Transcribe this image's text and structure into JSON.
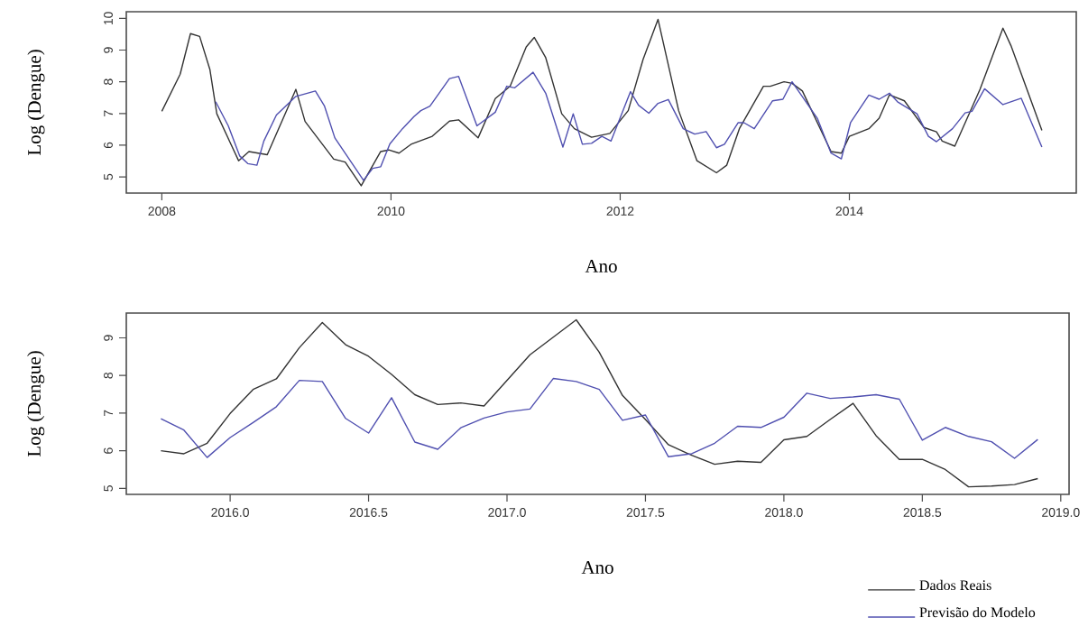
{
  "chart_data": [
    {
      "type": "line",
      "xlabel": "Ano",
      "ylabel": "Log (Dengue)",
      "xlim": [
        2007.69,
        2015.98
      ],
      "ylim": [
        4.49,
        10.21
      ],
      "xticks": [
        2008,
        2010,
        2012,
        2014
      ],
      "yticks": [
        5,
        6,
        7,
        8,
        9,
        10
      ],
      "series": [
        {
          "color": "#333333",
          "x": [
            2008.0,
            2008.16,
            2008.25,
            2008.33,
            2008.42,
            2008.48,
            2008.67,
            2008.76,
            2008.92,
            2009.17,
            2009.25,
            2009.5,
            2009.6,
            2009.74,
            2009.91,
            2009.98,
            2010.07,
            2010.18,
            2010.36,
            2010.51,
            2010.59,
            2010.76,
            2010.91,
            2011.04,
            2011.18,
            2011.25,
            2011.35,
            2011.49,
            2011.6,
            2011.75,
            2011.91,
            2012.07,
            2012.2,
            2012.33,
            2012.51,
            2012.67,
            2012.84,
            2012.93,
            2013.04,
            2013.25,
            2013.31,
            2013.43,
            2013.5,
            2013.59,
            2013.84,
            2013.93,
            2014.0,
            2014.17,
            2014.26,
            2014.35,
            2014.48,
            2014.65,
            2014.76,
            2014.81,
            2014.92,
            2015.14,
            2015.34,
            2015.41,
            2015.68
          ],
          "values": [
            7.07,
            8.24,
            9.52,
            9.43,
            8.38,
            6.99,
            5.51,
            5.8,
            5.7,
            7.76,
            6.75,
            5.56,
            5.47,
            4.72,
            5.8,
            5.85,
            5.75,
            6.04,
            6.28,
            6.76,
            6.8,
            6.23,
            7.47,
            7.86,
            9.1,
            9.4,
            8.76,
            6.99,
            6.52,
            6.25,
            6.37,
            7.09,
            8.71,
            9.97,
            7.09,
            5.51,
            5.13,
            5.37,
            6.52,
            7.86,
            7.86,
            8.0,
            7.95,
            7.71,
            5.8,
            5.75,
            6.28,
            6.52,
            6.85,
            7.59,
            7.4,
            6.56,
            6.42,
            6.13,
            5.97,
            7.76,
            9.69,
            9.14,
            6.47
          ]
        },
        {
          "color": "#5050b0",
          "x": [
            2008.47,
            2008.58,
            2008.68,
            2008.75,
            2008.83,
            2008.89,
            2009.0,
            2009.17,
            2009.34,
            2009.42,
            2009.51,
            2009.76,
            2009.84,
            2009.91,
            2009.99,
            2010.1,
            2010.2,
            2010.26,
            2010.34,
            2010.51,
            2010.59,
            2010.75,
            2010.91,
            2011.01,
            2011.08,
            2011.24,
            2011.35,
            2011.5,
            2011.59,
            2011.67,
            2011.75,
            2011.84,
            2011.92,
            2012.09,
            2012.16,
            2012.25,
            2012.33,
            2012.42,
            2012.55,
            2012.65,
            2012.75,
            2012.84,
            2012.91,
            2013.03,
            2013.08,
            2013.17,
            2013.33,
            2013.42,
            2013.5,
            2013.72,
            2013.84,
            2013.93,
            2014.01,
            2014.17,
            2014.26,
            2014.35,
            2014.42,
            2014.59,
            2014.69,
            2014.76,
            2014.9,
            2015.01,
            2015.07,
            2015.18,
            2015.34,
            2015.5,
            2015.68
          ],
          "values": [
            7.37,
            6.61,
            5.66,
            5.42,
            5.37,
            6.13,
            6.95,
            7.54,
            7.71,
            7.23,
            6.23,
            4.89,
            5.27,
            5.32,
            6.04,
            6.52,
            6.9,
            7.09,
            7.23,
            8.1,
            8.17,
            6.61,
            7.04,
            7.86,
            7.81,
            8.3,
            7.64,
            5.94,
            6.99,
            6.03,
            6.06,
            6.28,
            6.13,
            7.69,
            7.26,
            7.01,
            7.32,
            7.44,
            6.52,
            6.35,
            6.43,
            5.92,
            6.03,
            6.71,
            6.71,
            6.52,
            7.4,
            7.45,
            8.0,
            6.85,
            5.75,
            5.57,
            6.71,
            7.58,
            7.45,
            7.64,
            7.37,
            6.99,
            6.28,
            6.11,
            6.52,
            7.02,
            7.07,
            7.78,
            7.28,
            7.48,
            5.94
          ]
        }
      ]
    },
    {
      "type": "line",
      "xlabel": "Ano",
      "ylabel": "Log (Dengue)",
      "xlim": [
        2015.625,
        2019.03
      ],
      "ylim": [
        4.84,
        9.66
      ],
      "xticks": [
        {
          "value": 2016,
          "label": "2016.0"
        },
        {
          "value": 2016.5,
          "label": "2016.5"
        },
        {
          "value": 2017,
          "label": "2017.0"
        },
        {
          "value": 2017.5,
          "label": "2017.5"
        },
        {
          "value": 2018,
          "label": "2018.0"
        },
        {
          "value": 2018.5,
          "label": "2018.5"
        },
        {
          "value": 2019,
          "label": "2019.0"
        }
      ],
      "yticks": [
        5,
        6,
        7,
        8,
        9
      ],
      "legend": "bottom right",
      "series": [
        {
          "name": "Dados Reais",
          "color": "#333333",
          "x": [
            2015.75,
            2015.833,
            2015.917,
            2016.0,
            2016.083,
            2016.167,
            2016.25,
            2016.333,
            2016.417,
            2016.5,
            2016.583,
            2016.667,
            2016.75,
            2016.833,
            2016.917,
            2017.0,
            2017.083,
            2017.167,
            2017.25,
            2017.333,
            2017.417,
            2017.5,
            2017.583,
            2017.667,
            2017.75,
            2017.833,
            2017.917,
            2018.0,
            2018.083,
            2018.167,
            2018.25,
            2018.333,
            2018.417,
            2018.5,
            2018.583,
            2018.667,
            2018.75,
            2018.833,
            2018.917
          ],
          "values": [
            6.0,
            5.92,
            6.2,
            6.99,
            7.63,
            7.91,
            8.74,
            9.41,
            8.82,
            8.51,
            8.03,
            7.49,
            7.23,
            7.27,
            7.19,
            7.87,
            8.55,
            9.02,
            9.48,
            8.62,
            7.47,
            6.83,
            6.16,
            5.88,
            5.64,
            5.72,
            5.69,
            6.29,
            6.38,
            6.83,
            7.26,
            6.4,
            5.77,
            5.77,
            5.5,
            5.04,
            5.06,
            5.1,
            5.26
          ]
        },
        {
          "name": "Previsão do Modelo",
          "color": "#5050b0",
          "x": [
            2015.75,
            2015.833,
            2015.917,
            2016.0,
            2016.083,
            2016.167,
            2016.25,
            2016.333,
            2016.417,
            2016.5,
            2016.583,
            2016.667,
            2016.75,
            2016.833,
            2016.917,
            2017.0,
            2017.083,
            2017.167,
            2017.25,
            2017.333,
            2017.417,
            2017.5,
            2017.583,
            2017.667,
            2017.75,
            2017.833,
            2017.917,
            2018.0,
            2018.083,
            2018.167,
            2018.25,
            2018.333,
            2018.417,
            2018.5,
            2018.583,
            2018.667,
            2018.75,
            2018.833,
            2018.917
          ],
          "values": [
            6.85,
            6.55,
            5.82,
            6.35,
            6.75,
            7.17,
            7.87,
            7.84,
            6.86,
            6.47,
            7.41,
            6.23,
            6.04,
            6.61,
            6.87,
            7.03,
            7.11,
            7.92,
            7.84,
            7.63,
            6.81,
            6.95,
            5.84,
            5.92,
            6.2,
            6.65,
            6.62,
            6.89,
            7.53,
            7.39,
            7.43,
            7.49,
            7.37,
            6.28,
            6.62,
            6.38,
            6.24,
            5.8,
            6.3
          ]
        }
      ]
    }
  ]
}
